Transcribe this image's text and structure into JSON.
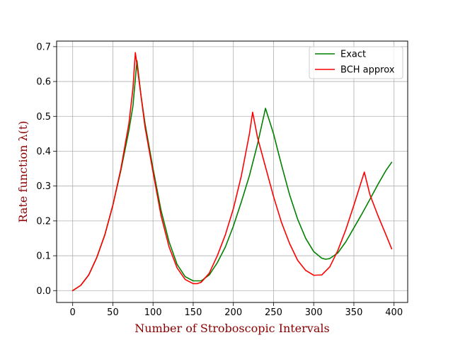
{
  "chart_data": {
    "type": "line",
    "title": "",
    "xlabel": "Number of Stroboscopic Intervals",
    "ylabel": "Rate function λ(t)",
    "label_color": "#8b0000",
    "xlim": [
      -20,
      417
    ],
    "ylim": [
      -0.034,
      0.716
    ],
    "xticks": [
      0,
      50,
      100,
      150,
      200,
      250,
      300,
      350,
      400
    ],
    "yticks": [
      0.0,
      0.1,
      0.2,
      0.3,
      0.4,
      0.5,
      0.6,
      0.7
    ],
    "xtick_labels": [
      "0",
      "50",
      "100",
      "150",
      "200",
      "250",
      "300",
      "350",
      "400"
    ],
    "ytick_labels": [
      "0.0",
      "0.1",
      "0.2",
      "0.3",
      "0.4",
      "0.5",
      "0.6",
      "0.7"
    ],
    "grid": true,
    "legend": "upper right",
    "series": [
      {
        "name": "Exact",
        "color": "#008000",
        "points": [
          [
            0,
            0.0
          ],
          [
            10,
            0.015
          ],
          [
            20,
            0.045
          ],
          [
            30,
            0.095
          ],
          [
            40,
            0.16
          ],
          [
            50,
            0.245
          ],
          [
            60,
            0.345
          ],
          [
            70,
            0.46
          ],
          [
            75,
            0.53
          ],
          [
            80,
            0.66
          ],
          [
            85,
            0.56
          ],
          [
            90,
            0.48
          ],
          [
            100,
            0.35
          ],
          [
            110,
            0.23
          ],
          [
            120,
            0.14
          ],
          [
            130,
            0.075
          ],
          [
            140,
            0.04
          ],
          [
            150,
            0.028
          ],
          [
            160,
            0.028
          ],
          [
            170,
            0.045
          ],
          [
            180,
            0.08
          ],
          [
            190,
            0.125
          ],
          [
            200,
            0.185
          ],
          [
            210,
            0.255
          ],
          [
            220,
            0.33
          ],
          [
            230,
            0.42
          ],
          [
            240,
            0.523
          ],
          [
            250,
            0.45
          ],
          [
            260,
            0.36
          ],
          [
            270,
            0.275
          ],
          [
            280,
            0.205
          ],
          [
            290,
            0.15
          ],
          [
            300,
            0.112
          ],
          [
            310,
            0.093
          ],
          [
            315,
            0.09
          ],
          [
            320,
            0.092
          ],
          [
            330,
            0.108
          ],
          [
            340,
            0.14
          ],
          [
            350,
            0.18
          ],
          [
            360,
            0.22
          ],
          [
            370,
            0.262
          ],
          [
            380,
            0.305
          ],
          [
            390,
            0.345
          ],
          [
            397,
            0.368
          ]
        ]
      },
      {
        "name": "BCH approx",
        "color": "#ff0000",
        "points": [
          [
            0,
            0.0
          ],
          [
            10,
            0.015
          ],
          [
            20,
            0.045
          ],
          [
            30,
            0.095
          ],
          [
            40,
            0.16
          ],
          [
            50,
            0.245
          ],
          [
            60,
            0.35
          ],
          [
            70,
            0.48
          ],
          [
            75,
            0.58
          ],
          [
            78,
            0.683
          ],
          [
            85,
            0.56
          ],
          [
            90,
            0.47
          ],
          [
            100,
            0.34
          ],
          [
            110,
            0.215
          ],
          [
            120,
            0.125
          ],
          [
            130,
            0.065
          ],
          [
            140,
            0.032
          ],
          [
            150,
            0.02
          ],
          [
            155,
            0.02
          ],
          [
            160,
            0.024
          ],
          [
            170,
            0.05
          ],
          [
            180,
            0.1
          ],
          [
            190,
            0.16
          ],
          [
            200,
            0.235
          ],
          [
            210,
            0.33
          ],
          [
            220,
            0.45
          ],
          [
            224,
            0.512
          ],
          [
            230,
            0.44
          ],
          [
            240,
            0.355
          ],
          [
            250,
            0.27
          ],
          [
            260,
            0.195
          ],
          [
            270,
            0.135
          ],
          [
            280,
            0.087
          ],
          [
            290,
            0.058
          ],
          [
            300,
            0.044
          ],
          [
            310,
            0.045
          ],
          [
            320,
            0.068
          ],
          [
            330,
            0.115
          ],
          [
            340,
            0.175
          ],
          [
            350,
            0.245
          ],
          [
            363,
            0.34
          ],
          [
            370,
            0.275
          ],
          [
            380,
            0.215
          ],
          [
            390,
            0.16
          ],
          [
            397,
            0.12
          ]
        ]
      }
    ]
  }
}
